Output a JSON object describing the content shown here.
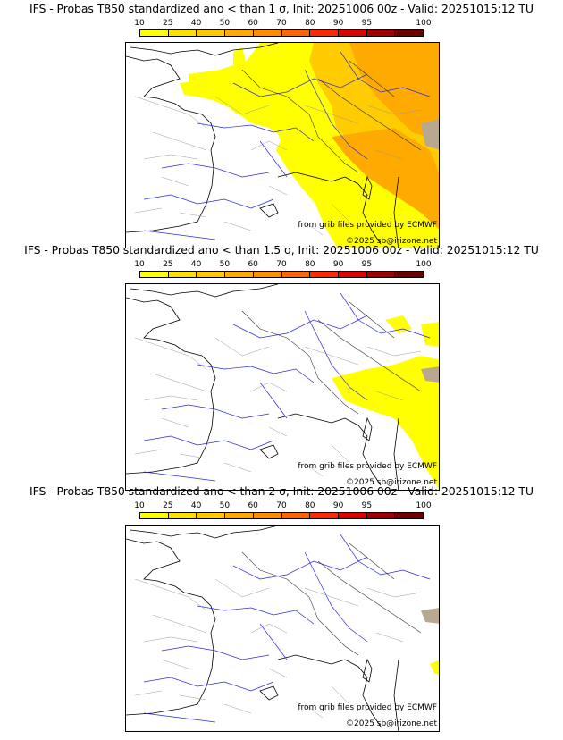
{
  "legend": {
    "labels": [
      "10",
      "25",
      "40",
      "50",
      "60",
      "70",
      "80",
      "90",
      "95",
      "100"
    ],
    "colors": [
      "#ffff00",
      "#ffe100",
      "#ffc800",
      "#ffaa00",
      "#ff8c00",
      "#ff6400",
      "#ff2800",
      "#dc0000",
      "#a00000",
      "#6e0000"
    ]
  },
  "credits": {
    "source": "from grib files provided by ECMWF",
    "copyright": "©2025 sb@irizone.net"
  },
  "panels": [
    {
      "title": "IFS - Probas T850  standardized ano < than 1 σ, Init: 20251006 00z - Valid: 20251015:12 TU"
    },
    {
      "title": "IFS - Probas T850  standardized ano < than 1.5 σ, Init: 20251006 00z - Valid: 20251015:12 TU"
    },
    {
      "title": "IFS - Probas T850  standardized ano < than 2 σ, Init: 20251006 00z - Valid: 20251015:12 TU"
    }
  ]
}
